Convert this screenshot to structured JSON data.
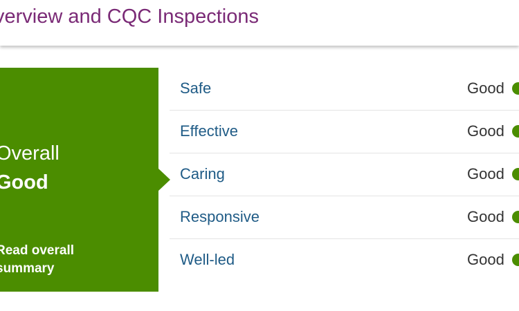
{
  "header": {
    "title": "verview and CQC Inspections"
  },
  "overall": {
    "label": "Overall",
    "rating": "Good",
    "link_text": "Read overall summary",
    "color": "#4b8d00"
  },
  "ratings": [
    {
      "name": "Safe",
      "value": "Good",
      "indicator": "green-dot-icon"
    },
    {
      "name": "Effective",
      "value": "Good",
      "indicator": "green-dot-icon"
    },
    {
      "name": "Caring",
      "value": "Good",
      "indicator": "green-dot-icon"
    },
    {
      "name": "Responsive",
      "value": "Good",
      "indicator": "green-dot-icon"
    },
    {
      "name": "Well-led",
      "value": "Good",
      "indicator": "green-dot-icon"
    }
  ],
  "colors": {
    "title": "#7a2a76",
    "link": "#1f5b86",
    "good": "#4b8d00"
  }
}
